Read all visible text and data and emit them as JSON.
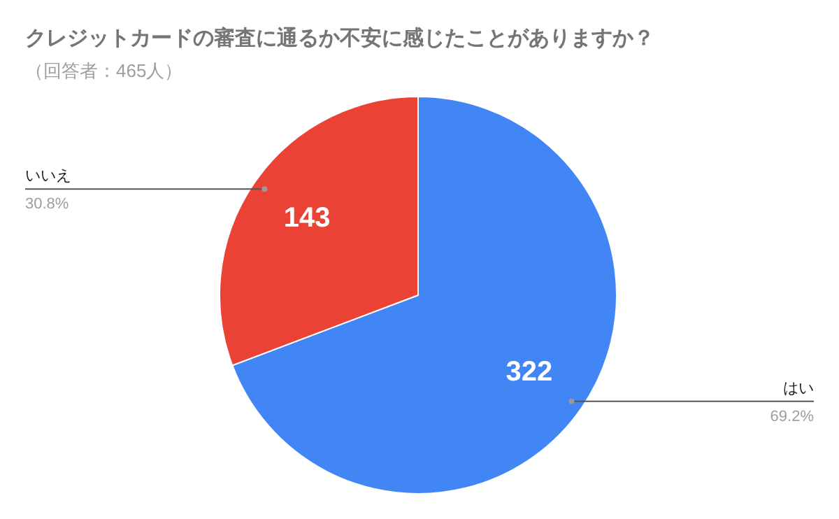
{
  "chart_data": {
    "type": "pie",
    "title": "クレジットカードの審査に通るか不安に感じたことがありますか？",
    "subtitle": "（回答者：465人）",
    "categories": [
      "はい",
      "いいえ"
    ],
    "values": [
      322,
      143
    ],
    "colors": [
      "#4285f4",
      "#ea4335"
    ],
    "annotations": [
      "69.2%",
      "30.8%"
    ],
    "data_labels": true
  }
}
